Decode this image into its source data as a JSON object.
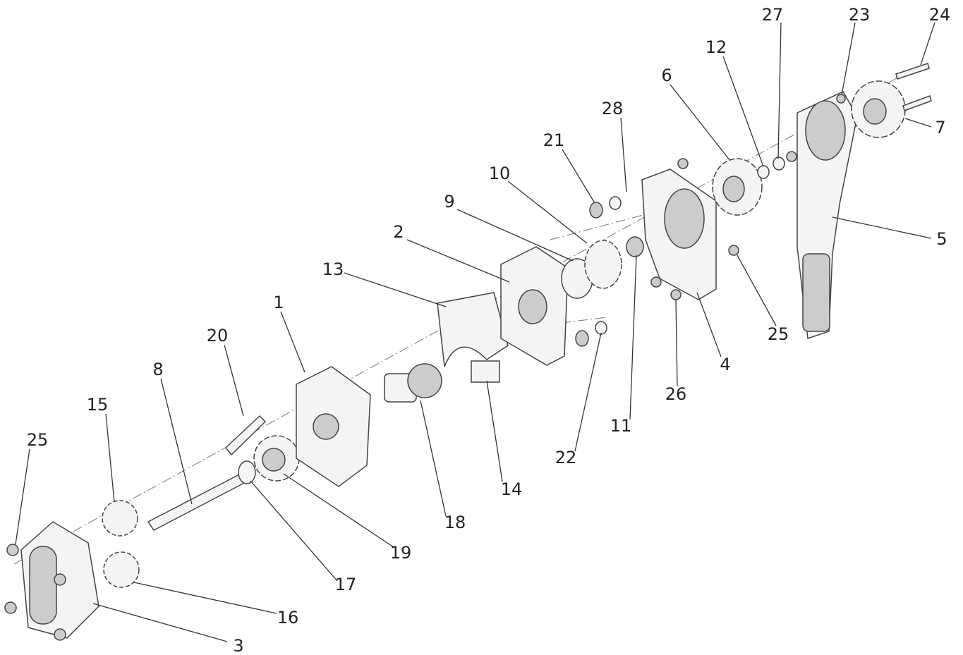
{
  "callouts": [
    {
      "label": "27"
    },
    {
      "label": "23"
    },
    {
      "label": "24"
    },
    {
      "label": "12"
    },
    {
      "label": "6"
    },
    {
      "label": "28"
    },
    {
      "label": "7"
    },
    {
      "label": "21"
    },
    {
      "label": "10"
    },
    {
      "label": "9"
    },
    {
      "label": "2"
    },
    {
      "label": "5"
    },
    {
      "label": "13"
    },
    {
      "label": "1"
    },
    {
      "label": "25"
    },
    {
      "label": "20"
    },
    {
      "label": "11"
    },
    {
      "label": "4"
    },
    {
      "label": "26"
    },
    {
      "label": "8"
    },
    {
      "label": "15"
    },
    {
      "label": "25"
    },
    {
      "label": "22"
    },
    {
      "label": "14"
    },
    {
      "label": "18"
    },
    {
      "label": "19"
    },
    {
      "label": "17"
    },
    {
      "label": "16"
    },
    {
      "label": "3"
    }
  ]
}
